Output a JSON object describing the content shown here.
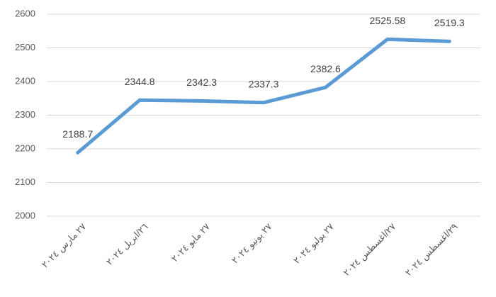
{
  "chart_data": {
    "type": "line",
    "categories": [
      "٢٧ مارس ٢٠٢٤",
      "٢٦/ابريل ٢٠٢٤",
      "٢٧ مايو ٢٠٢٤",
      "٢٧ يونيو ٢٠٢٤",
      "٢٧ يوليو ٢٠٢٤",
      "٢٧/اغسطس ٢٠٢٤",
      "٢٩/اغسطس ٢٠٢٤"
    ],
    "values": [
      2188.7,
      2344.8,
      2342.3,
      2337.3,
      2382.6,
      2525.58,
      2519.3
    ],
    "color": "#5b9bd5",
    "ylim": [
      2000,
      2600
    ],
    "yticks": [
      2000,
      2100,
      2200,
      2300,
      2400,
      2500,
      2600
    ],
    "grid": true
  }
}
